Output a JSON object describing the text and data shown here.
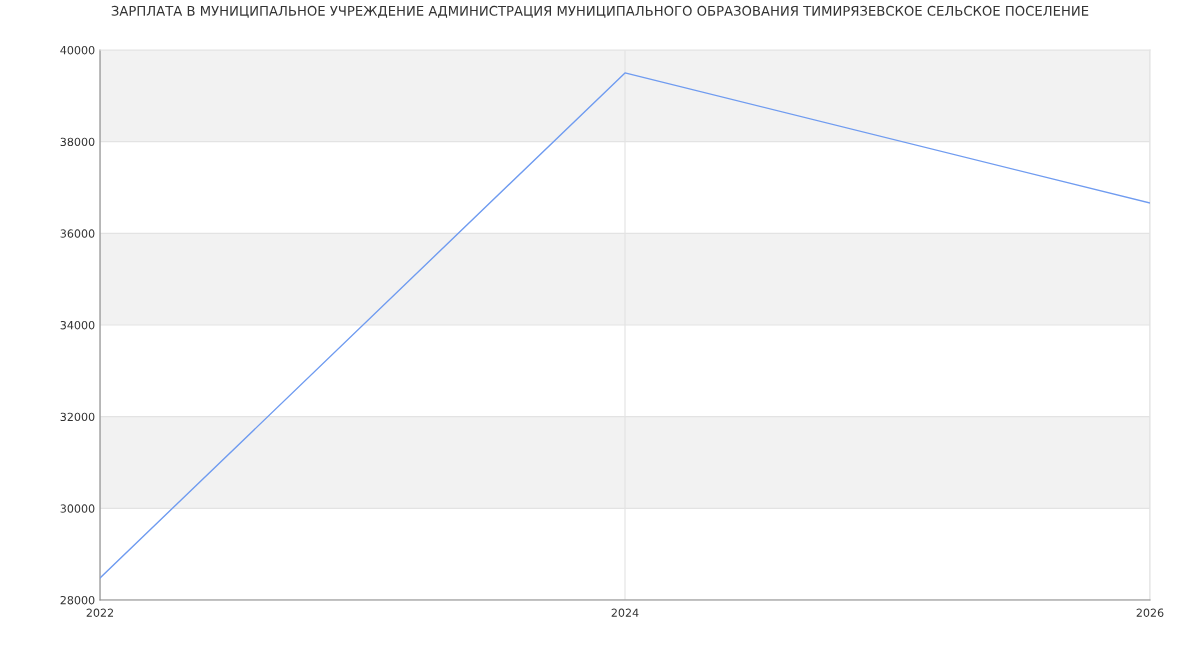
{
  "chart_data": {
    "type": "line",
    "title": "ЗАРПЛАТА В МУНИЦИПАЛЬНОЕ УЧРЕЖДЕНИЕ АДМИНИСТРАЦИЯ МУНИЦИПАЛЬНОГО ОБРАЗОВАНИЯ ТИМИРЯЗЕВСКОЕ СЕЛЬСКОЕ ПОСЕЛЕНИЕ",
    "x": [
      2022,
      2024,
      2026
    ],
    "series": [
      {
        "color": "#6f9bf0",
        "values": [
          28480,
          39500,
          36660
        ]
      }
    ],
    "xlim": [
      2022,
      2026
    ],
    "xticks": [
      2022,
      2024,
      2026
    ],
    "ylim": [
      28000,
      40000
    ],
    "yticks": [
      28000,
      30000,
      32000,
      34000,
      36000,
      38000,
      40000
    ],
    "bands": [
      {
        "axis": "y",
        "from": 30000,
        "to": 32000,
        "color": "#f2f2f2"
      },
      {
        "axis": "y",
        "from": 34000,
        "to": 36000,
        "color": "#f2f2f2"
      },
      {
        "axis": "y",
        "from": 38000,
        "to": 40000,
        "color": "#f2f2f2"
      }
    ],
    "grid": true,
    "marker": "none",
    "line_style": "solid"
  }
}
